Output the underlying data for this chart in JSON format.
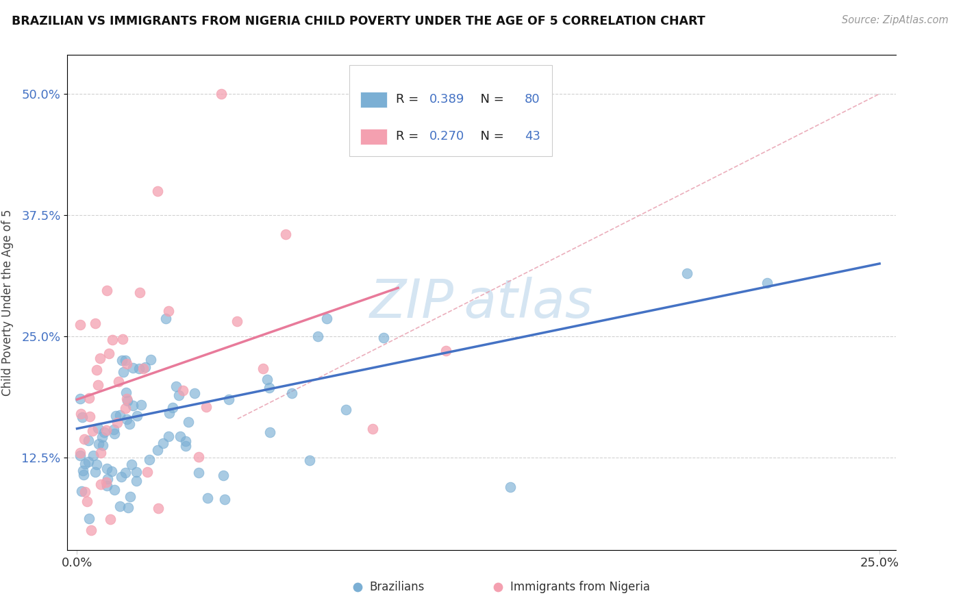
{
  "title": "BRAZILIAN VS IMMIGRANTS FROM NIGERIA CHILD POVERTY UNDER THE AGE OF 5 CORRELATION CHART",
  "source": "Source: ZipAtlas.com",
  "ylabel_label": "Child Poverty Under the Age of 5",
  "r_brazil": 0.389,
  "n_brazil": 80,
  "r_nigeria": 0.27,
  "n_nigeria": 43,
  "blue_color": "#7BAFD4",
  "pink_color": "#F4A0B0",
  "blue_line_color": "#4472C4",
  "pink_line_color": "#E87A9A",
  "dashed_line_color": "#E8A0B0",
  "grid_color": "#CCCCCC",
  "title_color": "#111111",
  "axis_label_color": "#4472C4",
  "watermark_color": "#D0DFF0",
  "watermark_text_color": "#C8D8E8"
}
